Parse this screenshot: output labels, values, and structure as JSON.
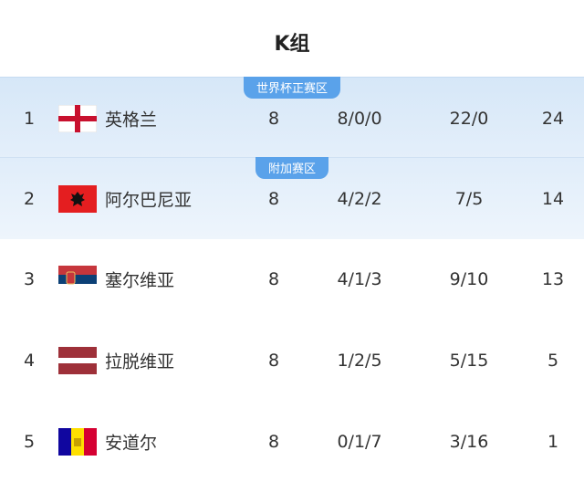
{
  "title": "K组",
  "zones": {
    "qualify": "世界杯正赛区",
    "playoff": "附加赛区"
  },
  "colors": {
    "badge": "#5aa2ea",
    "qualify_bg": "#d6e7f8",
    "playoff_bg": "#e0edfa"
  },
  "rows": [
    {
      "rank": "1",
      "team": "英格兰",
      "flag": "england-flag",
      "played": "8",
      "wdl": "8/0/0",
      "goals": "22/0",
      "points": "24"
    },
    {
      "rank": "2",
      "team": "阿尔巴尼亚",
      "flag": "albania-flag",
      "played": "8",
      "wdl": "4/2/2",
      "goals": "7/5",
      "points": "14"
    },
    {
      "rank": "3",
      "team": "塞尔维亚",
      "flag": "serbia-flag",
      "played": "8",
      "wdl": "4/1/3",
      "goals": "9/10",
      "points": "13"
    },
    {
      "rank": "4",
      "team": "拉脱维亚",
      "flag": "latvia-flag",
      "played": "8",
      "wdl": "1/2/5",
      "goals": "5/15",
      "points": "5"
    },
    {
      "rank": "5",
      "team": "安道尔",
      "flag": "andorra-flag",
      "played": "8",
      "wdl": "0/1/7",
      "goals": "3/16",
      "points": "1"
    }
  ]
}
